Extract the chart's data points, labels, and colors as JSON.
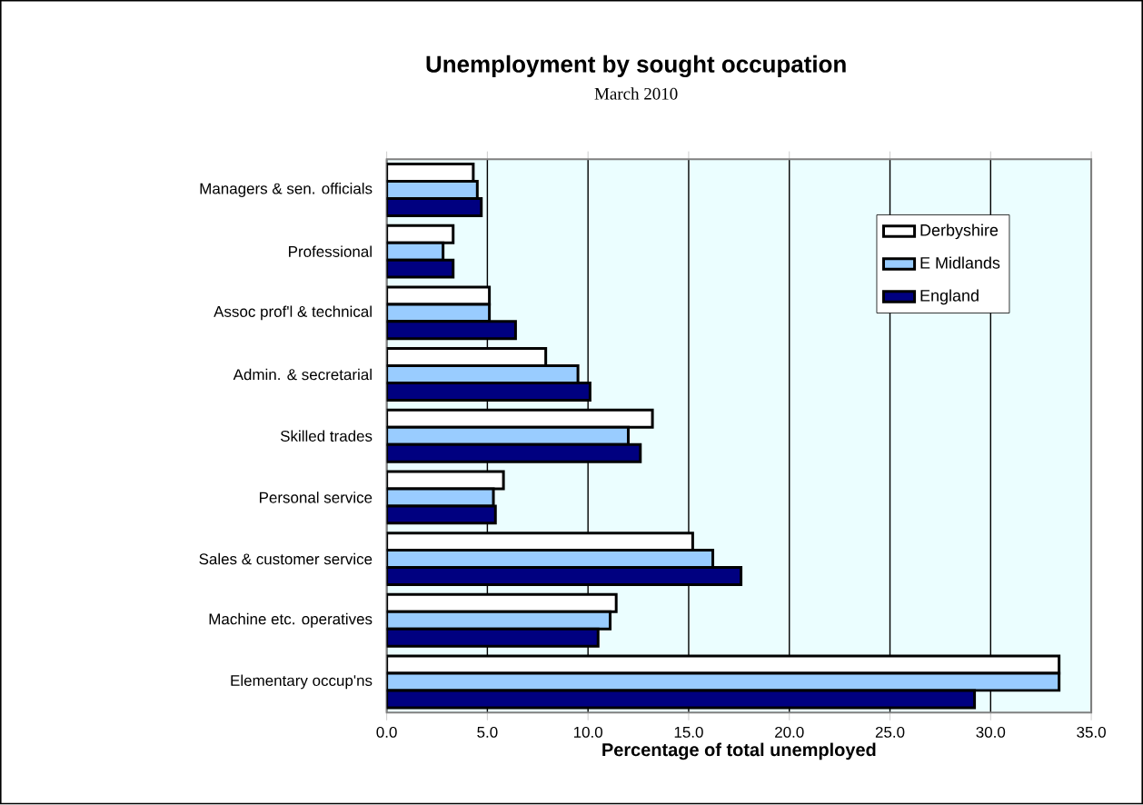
{
  "chart_data": {
    "type": "bar",
    "orientation": "horizontal",
    "title": "Unemployment by sought occupation",
    "subtitle": "March 2010",
    "xlabel": "Percentage of total unemployed",
    "categories": [
      "Managers & sen. officials",
      "Professional",
      "Assoc prof'l & technical",
      "Admin. & secretarial",
      "Skilled trades",
      "Personal service",
      "Sales & customer service",
      "Machine etc. operatives",
      "Elementary occup'ns"
    ],
    "series": [
      {
        "name": "Derbyshire",
        "color": "#ffffff",
        "values": [
          4.3,
          3.3,
          5.1,
          7.9,
          13.2,
          5.8,
          15.2,
          11.4,
          33.4
        ]
      },
      {
        "name": "E  Midlands",
        "color": "#99ccff",
        "values": [
          4.5,
          2.8,
          5.1,
          9.5,
          12.0,
          5.3,
          16.2,
          11.1,
          33.4
        ]
      },
      {
        "name": "England",
        "color": "#000080",
        "values": [
          4.7,
          3.3,
          6.4,
          10.1,
          12.6,
          5.4,
          17.6,
          10.5,
          29.2
        ]
      }
    ],
    "xlim": [
      0,
      35
    ],
    "xticks": [
      {
        "value": 0,
        "label": "0.0"
      },
      {
        "value": 5,
        "label": "5.0"
      },
      {
        "value": 10,
        "label": "10.0"
      },
      {
        "value": 15,
        "label": "15.0"
      },
      {
        "value": 20,
        "label": "20.0"
      },
      {
        "value": 25,
        "label": "25.0"
      },
      {
        "value": 30,
        "label": "30.0"
      },
      {
        "value": 35,
        "label": "35.0"
      }
    ],
    "grid": "x",
    "legend": "right"
  }
}
